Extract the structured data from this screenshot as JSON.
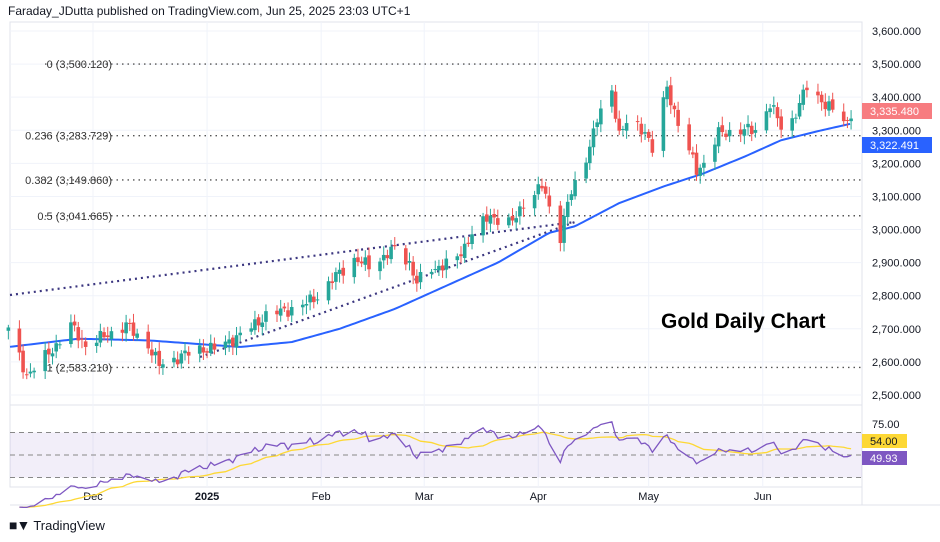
{
  "header": "Faraday_JDutta published on TradingView.com, Jun 25, 2025 23:03 UTC+1",
  "footer": {
    "brand": "TradingView",
    "logo_mark": "TV"
  },
  "annotation": "Gold Daily Chart",
  "colors": {
    "up": "#26a69a",
    "down": "#ef5350",
    "ma": "#2962ff",
    "rsi": "#7e57c2",
    "rsi_ma": "#fdd835",
    "fib": "#555"
  },
  "chart_data": {
    "type": "candlestick",
    "title": "",
    "y_axis": {
      "min": 2450,
      "max": 3620,
      "ticks": [
        "3,600.000",
        "3,500.000",
        "3,400.000",
        "3,300.000",
        "3,200.000",
        "3,100.000",
        "3,000.000",
        "2,900.000",
        "2,800.000",
        "2,700.000",
        "2,600.000",
        "2,500.000"
      ],
      "tick_values": [
        3600,
        3500,
        3400,
        3300,
        3200,
        3100,
        3000,
        2900,
        2800,
        2700,
        2600,
        2500
      ]
    },
    "x_axis": {
      "ticks": [
        {
          "label": "Dec",
          "date": "2024-12-01"
        },
        {
          "label": "2025",
          "date": "2025-01-01"
        },
        {
          "label": "Feb",
          "date": "2025-02-01"
        },
        {
          "label": "Mar",
          "date": "2025-03-01"
        },
        {
          "label": "Apr",
          "date": "2025-04-01"
        },
        {
          "label": "May",
          "date": "2025-05-01"
        },
        {
          "label": "Jun",
          "date": "2025-06-01"
        }
      ],
      "start": "2024-11-08",
      "end": "2025-06-25"
    },
    "close_keypoints": [
      [
        "2024-11-08",
        2696
      ],
      [
        "2024-11-13",
        2560
      ],
      [
        "2024-11-15",
        2580
      ],
      [
        "2024-11-21",
        2650
      ],
      [
        "2024-11-25",
        2710
      ],
      [
        "2024-11-29",
        2650
      ],
      [
        "2024-12-10",
        2710
      ],
      [
        "2024-12-16",
        2650
      ],
      [
        "2024-12-19",
        2590
      ],
      [
        "2024-12-30",
        2640
      ],
      [
        "2025-01-03",
        2640
      ],
      [
        "2025-01-10",
        2680
      ],
      [
        "2025-01-17",
        2740
      ],
      [
        "2025-01-27",
        2770
      ],
      [
        "2025-01-31",
        2800
      ],
      [
        "2025-02-06",
        2870
      ],
      [
        "2025-02-10",
        2910
      ],
      [
        "2025-02-14",
        2890
      ],
      [
        "2025-02-21",
        2940
      ],
      [
        "2025-02-25",
        2900
      ],
      [
        "2025-02-27",
        2840
      ],
      [
        "2025-03-03",
        2880
      ],
      [
        "2025-03-10",
        2910
      ],
      [
        "2025-03-14",
        2990
      ],
      [
        "2025-03-19",
        3040
      ],
      [
        "2025-03-25",
        3020
      ],
      [
        "2025-03-28",
        3080
      ],
      [
        "2025-04-02",
        3130
      ],
      [
        "2025-04-07",
        2980
      ],
      [
        "2025-04-09",
        3080
      ],
      [
        "2025-04-14",
        3220
      ],
      [
        "2025-04-17",
        3330
      ],
      [
        "2025-04-21",
        3420
      ],
      [
        "2025-04-23",
        3290
      ],
      [
        "2025-04-25",
        3320
      ],
      [
        "2025-04-30",
        3300
      ],
      [
        "2025-05-02",
        3240
      ],
      [
        "2025-05-06",
        3430
      ],
      [
        "2025-05-09",
        3320
      ],
      [
        "2025-05-14",
        3180
      ],
      [
        "2025-05-16",
        3200
      ],
      [
        "2025-05-20",
        3290
      ],
      [
        "2025-05-26",
        3300
      ],
      [
        "2025-05-30",
        3300
      ],
      [
        "2025-06-03",
        3380
      ],
      [
        "2025-06-06",
        3310
      ],
      [
        "2025-06-09",
        3330
      ],
      [
        "2025-06-13",
        3430
      ],
      [
        "2025-06-17",
        3390
      ],
      [
        "2025-06-24",
        3320
      ],
      [
        "2025-06-25",
        3335
      ]
    ],
    "moving_average": {
      "last": "3,322.491",
      "keypoints": [
        [
          "2024-11-08",
          2645
        ],
        [
          "2024-11-27",
          2670
        ],
        [
          "2024-12-16",
          2665
        ],
        [
          "2025-01-10",
          2645
        ],
        [
          "2025-01-24",
          2660
        ],
        [
          "2025-02-06",
          2700
        ],
        [
          "2025-02-21",
          2760
        ],
        [
          "2025-03-07",
          2830
        ],
        [
          "2025-03-21",
          2900
        ],
        [
          "2025-04-04",
          2990
        ],
        [
          "2025-04-11",
          3010
        ],
        [
          "2025-04-23",
          3080
        ],
        [
          "2025-05-05",
          3130
        ],
        [
          "2025-05-16",
          3170
        ],
        [
          "2025-05-27",
          3220
        ],
        [
          "2025-06-06",
          3270
        ],
        [
          "2025-06-17",
          3300
        ],
        [
          "2025-06-27",
          3325
        ]
      ]
    },
    "last_price": "3,335.480",
    "fibonacci": [
      {
        "label": "0 (3,500.120)",
        "value": 3500.12
      },
      {
        "label": "0.236 (3,283.729)",
        "value": 3283.729
      },
      {
        "label": "0.382 (3,149.860)",
        "value": 3149.86
      },
      {
        "label": "0.5 (3,041.665)",
        "value": 3041.665
      },
      {
        "label": "1 (2,583.210)",
        "value": 2583.21
      }
    ],
    "trendlines": [
      {
        "from": [
          "2024-11-08",
          2815
        ],
        "to": [
          "2025-04-11",
          3020
        ]
      }
    ],
    "rsi": {
      "upper": 70,
      "middle": 50,
      "lower": 30,
      "top_label": "75.00",
      "ma_value": "54.00",
      "value": "49.93"
    }
  }
}
